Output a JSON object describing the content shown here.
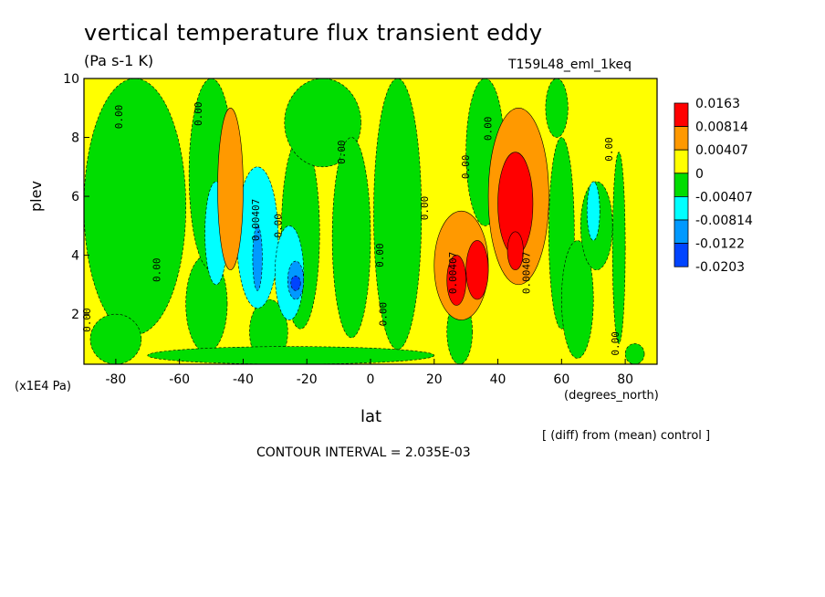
{
  "chart_data": {
    "type": "heatmap",
    "title": "vertical temperature flux transient eddy",
    "units": "(Pa s-1 K)",
    "run_id": "T159L48_eml_1keq",
    "xlabel": "lat",
    "x_units": "(degrees_north)",
    "ylabel": "plev",
    "y_units": "(x1E4 Pa)",
    "note": "[ (diff) from (mean) control ]",
    "contour_interval": "CONTOUR INTERVAL = 2.035E-03",
    "xlim": [
      -90,
      90
    ],
    "ylim": [
      10,
      0.3
    ],
    "x_ticks": [
      -80,
      -60,
      -40,
      -20,
      0,
      20,
      40,
      60,
      80
    ],
    "y_ticks": [
      2,
      4,
      6,
      8,
      10
    ],
    "legend": {
      "placement": "right",
      "levels": [
        "0.0163",
        "0.00814",
        "0.00407",
        "0",
        "-0.00407",
        "-0.00814",
        "-0.0122",
        "-0.0203"
      ],
      "colors": [
        "#ff0000",
        "#ff9900",
        "#ffff00",
        "#00dd00",
        "#00ffff",
        "#0099ff",
        "#0044ff"
      ]
    },
    "background_color": "#ffff00",
    "regions": [
      {
        "band": 2,
        "x": [
          -90,
          -58
        ],
        "y": [
          1.3,
          10
        ]
      },
      {
        "band": 2,
        "x": [
          -88,
          -72
        ],
        "y": [
          0.3,
          2.0
        ]
      },
      {
        "band": 2,
        "x": [
          -58,
          -45
        ],
        "y": [
          0.7,
          4.0
        ]
      },
      {
        "band": 2,
        "x": [
          -57,
          -43
        ],
        "y": [
          3.5,
          10
        ]
      },
      {
        "band": 2,
        "x": [
          -38,
          -26
        ],
        "y": [
          0.3,
          2.5
        ]
      },
      {
        "band": 2,
        "x": [
          -28,
          -16
        ],
        "y": [
          1.5,
          8.0
        ]
      },
      {
        "band": 2,
        "x": [
          -27,
          -3
        ],
        "y": [
          7.0,
          10
        ]
      },
      {
        "band": 2,
        "x": [
          -12,
          0
        ],
        "y": [
          1.2,
          8.0
        ]
      },
      {
        "band": 2,
        "x": [
          1,
          16
        ],
        "y": [
          0.8,
          10
        ]
      },
      {
        "band": 2,
        "x": [
          -70,
          20
        ],
        "y": [
          0.3,
          0.9
        ]
      },
      {
        "band": 2,
        "x": [
          24,
          32
        ],
        "y": [
          0.3,
          2.5
        ]
      },
      {
        "band": 2,
        "x": [
          30,
          42
        ],
        "y": [
          5.0,
          10
        ]
      },
      {
        "band": 2,
        "x": [
          56,
          64
        ],
        "y": [
          1.5,
          8.0
        ]
      },
      {
        "band": 2,
        "x": [
          60,
          70
        ],
        "y": [
          0.5,
          4.5
        ]
      },
      {
        "band": 2,
        "x": [
          66,
          76
        ],
        "y": [
          3.5,
          6.5
        ]
      },
      {
        "band": 2,
        "x": [
          55,
          62
        ],
        "y": [
          8.0,
          10
        ]
      },
      {
        "band": 2,
        "x": [
          76,
          80
        ],
        "y": [
          1.0,
          7.5
        ]
      },
      {
        "band": 2,
        "x": [
          80,
          86
        ],
        "y": [
          0.3,
          1.0
        ]
      },
      {
        "band": 3,
        "x": [
          -52,
          -45
        ],
        "y": [
          3.0,
          6.5
        ]
      },
      {
        "band": 3,
        "x": [
          -42,
          -29
        ],
        "y": [
          2.2,
          7.0
        ]
      },
      {
        "band": 3,
        "x": [
          -30,
          -21
        ],
        "y": [
          1.8,
          5.0
        ]
      },
      {
        "band": 3,
        "x": [
          68,
          72
        ],
        "y": [
          4.5,
          6.5
        ]
      },
      {
        "band": 4,
        "x": [
          -37,
          -34
        ],
        "y": [
          2.8,
          5.0
        ]
      },
      {
        "band": 4,
        "x": [
          -26,
          -21
        ],
        "y": [
          2.5,
          3.8
        ]
      },
      {
        "band": 5,
        "x": [
          -25,
          -22
        ],
        "y": [
          2.8,
          3.3
        ]
      },
      {
        "band": -1,
        "x": [
          -48,
          -40
        ],
        "y": [
          3.5,
          9.0
        ]
      },
      {
        "band": -1,
        "x": [
          20,
          37
        ],
        "y": [
          1.8,
          5.5
        ]
      },
      {
        "band": -1,
        "x": [
          37,
          56
        ],
        "y": [
          3.0,
          9.0
        ]
      },
      {
        "band": -2,
        "x": [
          24,
          30
        ],
        "y": [
          2.3,
          4.0
        ]
      },
      {
        "band": -2,
        "x": [
          30,
          37
        ],
        "y": [
          2.5,
          4.5
        ]
      },
      {
        "band": -2,
        "x": [
          40,
          51
        ],
        "y": [
          4.0,
          7.5
        ]
      },
      {
        "band": -2,
        "x": [
          43,
          48
        ],
        "y": [
          3.5,
          4.8
        ]
      }
    ],
    "contour_labels": [
      {
        "text": "0.00",
        "x": -88,
        "y": 1.8
      },
      {
        "text": "0.00",
        "x": -66,
        "y": 3.5
      },
      {
        "text": "0.00",
        "x": -78,
        "y": 8.7
      },
      {
        "text": "0.00",
        "x": -53,
        "y": 8.8
      },
      {
        "text": "0.00",
        "x": -28,
        "y": 5.0
      },
      {
        "text": "0.00",
        "x": -8,
        "y": 7.5
      },
      {
        "text": "0.00",
        "x": 4,
        "y": 4.0
      },
      {
        "text": "0.00",
        "x": 5,
        "y": 2.0
      },
      {
        "text": "0.00",
        "x": 18,
        "y": 5.6
      },
      {
        "text": "0.00",
        "x": 31,
        "y": 7.0
      },
      {
        "text": "0.00",
        "x": 38,
        "y": 8.3
      },
      {
        "text": "0.00",
        "x": 78,
        "y": 1.0
      },
      {
        "text": "0.00",
        "x": 76,
        "y": 7.6
      },
      {
        "text": "0.00407",
        "x": -35,
        "y": 5.2
      },
      {
        "text": "0.00407",
        "x": 27,
        "y": 3.4
      },
      {
        "text": "0.00407",
        "x": 50,
        "y": 3.4
      }
    ]
  }
}
